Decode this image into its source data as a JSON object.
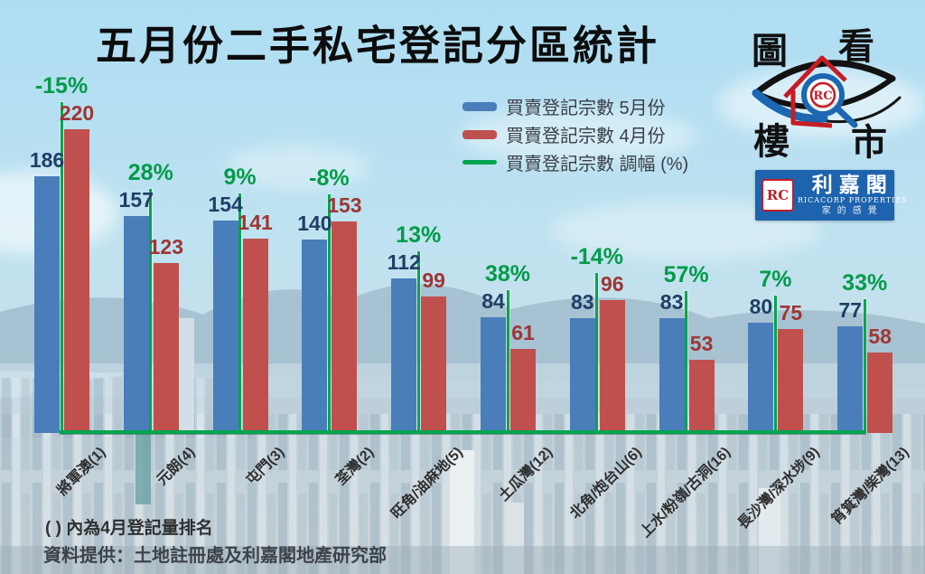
{
  "title": "五月份二手私宅登記分區統計",
  "legend": [
    {
      "label": "買賣登記宗數 5月份"
    },
    {
      "label": "買賣登記宗數 4月份"
    },
    {
      "label": "買賣登記宗數 調幅 (%)"
    }
  ],
  "chart_data": {
    "type": "bar",
    "title": "五月份二手私宅登記分區統計",
    "categories": [
      "將軍澳(1)",
      "元朗(4)",
      "屯門(3)",
      "荃灣(2)",
      "旺角/油麻地(5)",
      "土瓜灣(12)",
      "北角/炮台山(6)",
      "上水/粉嶺/古洞(16)",
      "長沙灣/深水埗(9)",
      "筲箕灣/柴灣(13)"
    ],
    "series": [
      {
        "name": "買賣登記宗數 5月份",
        "values": [
          186,
          157,
          154,
          140,
          112,
          84,
          83,
          83,
          80,
          77
        ]
      },
      {
        "name": "買賣登記宗數 4月份",
        "values": [
          220,
          123,
          141,
          153,
          99,
          61,
          96,
          53,
          75,
          58
        ]
      }
    ],
    "change_pct": [
      "-15%",
      "28%",
      "9%",
      "-8%",
      "13%",
      "38%",
      "-14%",
      "57%",
      "7%",
      "33%"
    ],
    "xlabel": "",
    "ylabel": "",
    "ylim": [
      0,
      240
    ],
    "grid": false,
    "legend_position": "top-right",
    "value_labels": true
  },
  "logo_eye": {
    "chars": [
      "圖",
      "看",
      "樓",
      "市"
    ],
    "monogram": "RC"
  },
  "logo_ricacorp": {
    "monogram": "RC",
    "name": "利嘉閣",
    "subtitle": "RICACORP PROPERTIES",
    "tagline": "家的感覺"
  },
  "notes": {
    "rank_note": "( ) 內為4月登記量排名",
    "source": "資料提供：土地註冊處及利嘉閣地產研究部"
  },
  "colors": {
    "bar_may": "#4a7eba",
    "bar_apr": "#c0504d",
    "change_line": "#00a54f",
    "label_may": "#1f3f66",
    "label_apr": "#9c3734",
    "label_pct": "#009b49",
    "ricacorp_blue": "#1e63ad",
    "logo_red": "#c41d25",
    "logo_blue": "#1c67b0"
  }
}
